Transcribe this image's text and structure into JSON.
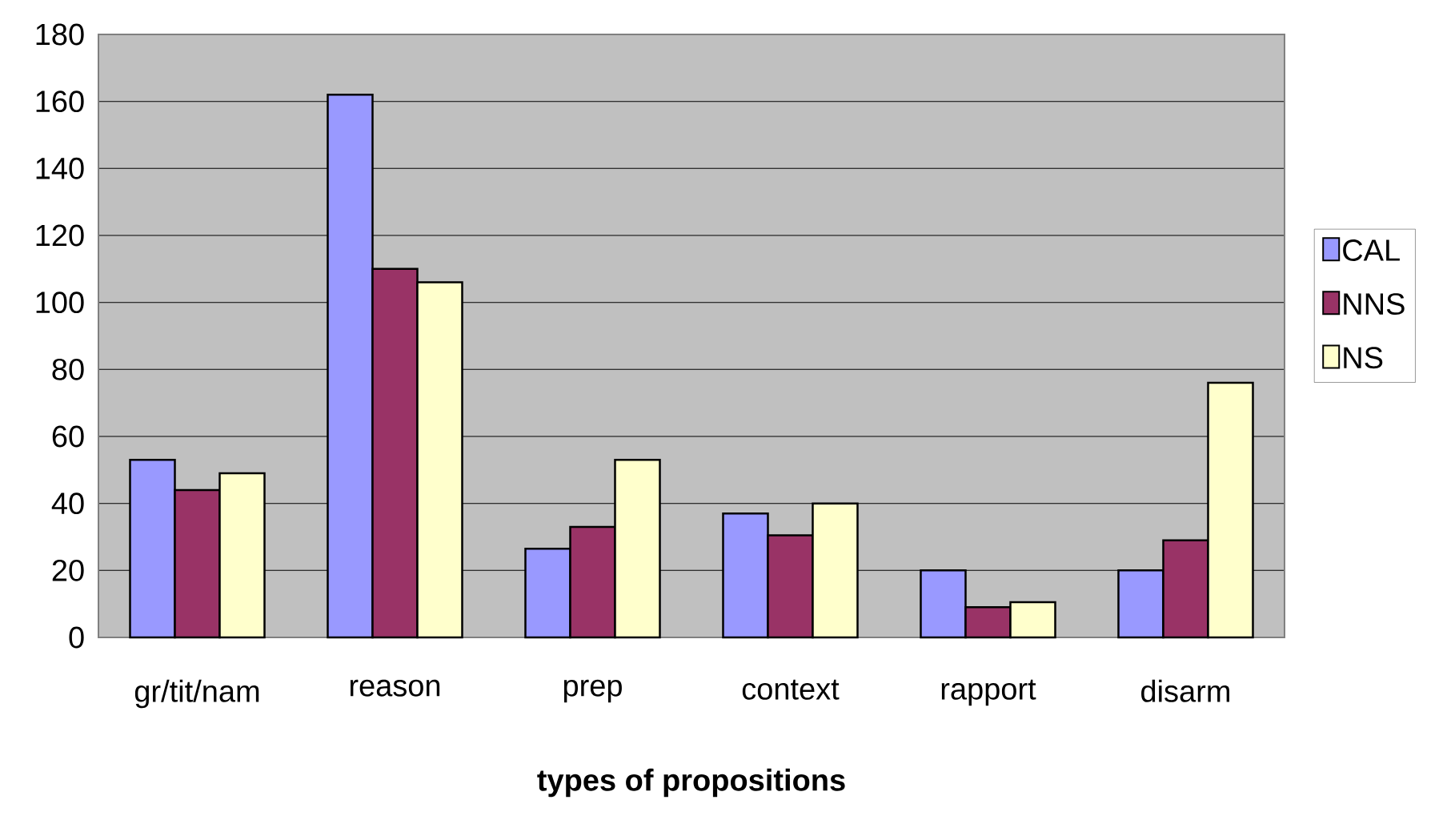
{
  "chart_data": {
    "type": "bar",
    "xlabel": "types of propositions",
    "categories": [
      "gr/tit/nam",
      "reason",
      "prep",
      "context",
      "rapport",
      "disarm"
    ],
    "series": [
      {
        "name": "CAL",
        "color": "#9999ff",
        "values": [
          53,
          162,
          26.5,
          37,
          20,
          20
        ]
      },
      {
        "name": "NNS",
        "color": "#993366",
        "values": [
          44,
          110,
          33,
          30.5,
          9,
          29
        ]
      },
      {
        "name": "NS",
        "color": "#ffffcc",
        "values": [
          49,
          106,
          53,
          40,
          10.5,
          76
        ]
      }
    ],
    "ylim": [
      0,
      180
    ],
    "yticks": [
      0,
      20,
      40,
      60,
      80,
      100,
      120,
      140,
      160,
      180
    ],
    "grid": "y",
    "legend": "right"
  }
}
